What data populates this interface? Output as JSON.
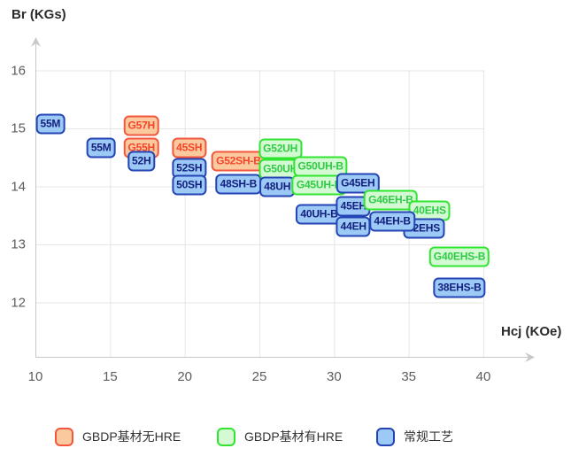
{
  "chart_data": {
    "type": "scatter",
    "title": "",
    "xlabel": "Hcj (KOe)",
    "ylabel": "Br (KGs)",
    "xlim": [
      10,
      40
    ],
    "ylim": [
      12,
      16
    ],
    "x_ticks": [
      10,
      15,
      20,
      25,
      30,
      35,
      40
    ],
    "y_ticks": [
      12,
      13,
      14,
      15,
      16
    ],
    "grid": true,
    "legend_position": "bottom",
    "categories": {
      "gbdp_no_hre": {
        "label": "GBDP基材无HRE",
        "fill": "#FBC99E",
        "border": "#F2573D",
        "text": "#F5452B"
      },
      "gbdp_hre": {
        "label": "GBDP基材有HRE",
        "fill": "#D4FAD3",
        "border": "#30E430",
        "text": "#2FCB45"
      },
      "conventional": {
        "label": "常规工艺",
        "fill": "#9CC9F5",
        "border": "#2344B4",
        "text": "#131F7E"
      }
    },
    "legend_order": [
      "gbdp_no_hre",
      "gbdp_hre",
      "conventional"
    ],
    "boxes": [
      {
        "label": "55M",
        "hcj": 11.0,
        "br": 15.07,
        "cat": "conventional"
      },
      {
        "label": "55M",
        "hcj": 14.4,
        "br": 14.66,
        "cat": "conventional"
      },
      {
        "label": "G57H",
        "hcj": 17.1,
        "br": 15.05,
        "cat": "gbdp_no_hre"
      },
      {
        "label": "G55H",
        "hcj": 17.1,
        "br": 14.66,
        "cat": "gbdp_no_hre"
      },
      {
        "label": "52H",
        "hcj": 17.1,
        "br": 14.43,
        "cat": "conventional"
      },
      {
        "label": "45SH",
        "hcj": 20.3,
        "br": 14.66,
        "cat": "gbdp_no_hre"
      },
      {
        "label": "52SH",
        "hcj": 20.3,
        "br": 14.32,
        "cat": "conventional"
      },
      {
        "label": "50SH",
        "hcj": 20.3,
        "br": 14.03,
        "cat": "conventional"
      },
      {
        "label": "G52SH-B",
        "hcj": 23.6,
        "br": 14.44,
        "cat": "gbdp_no_hre"
      },
      {
        "label": "48SH-B",
        "hcj": 23.6,
        "br": 14.04,
        "cat": "conventional"
      },
      {
        "label": "G52UH",
        "hcj": 26.4,
        "br": 14.65,
        "cat": "gbdp_hre"
      },
      {
        "label": "G50UH",
        "hcj": 26.4,
        "br": 14.3,
        "cat": "gbdp_hre"
      },
      {
        "label": "48UH",
        "hcj": 26.2,
        "br": 13.99,
        "cat": "conventional"
      },
      {
        "label": "G50UH-B",
        "hcj": 29.1,
        "br": 14.35,
        "cat": "gbdp_hre"
      },
      {
        "label": "G45UH-B",
        "hcj": 29.0,
        "br": 14.02,
        "cat": "gbdp_hre"
      },
      {
        "label": "40UH-B",
        "hcj": 29.0,
        "br": 13.52,
        "cat": "conventional"
      },
      {
        "label": "G45EH",
        "hcj": 31.6,
        "br": 14.05,
        "cat": "conventional"
      },
      {
        "label": "45EH",
        "hcj": 31.3,
        "br": 13.66,
        "cat": "conventional"
      },
      {
        "label": "44EH",
        "hcj": 31.3,
        "br": 13.3,
        "cat": "conventional"
      },
      {
        "label": "G46EH-B",
        "hcj": 33.8,
        "br": 13.77,
        "cat": "gbdp_hre"
      },
      {
        "label": "40EHS",
        "hcj": 36.4,
        "br": 13.58,
        "cat": "gbdp_hre"
      },
      {
        "label": "42EHS",
        "hcj": 36.0,
        "br": 13.28,
        "cat": "conventional"
      },
      {
        "label": "44EH-B",
        "hcj": 33.9,
        "br": 13.39,
        "cat": "conventional"
      },
      {
        "label": "G40EHS-B",
        "hcj": 38.4,
        "br": 12.79,
        "cat": "gbdp_hre"
      },
      {
        "label": "38EHS-B",
        "hcj": 38.4,
        "br": 12.25,
        "cat": "conventional"
      }
    ]
  }
}
